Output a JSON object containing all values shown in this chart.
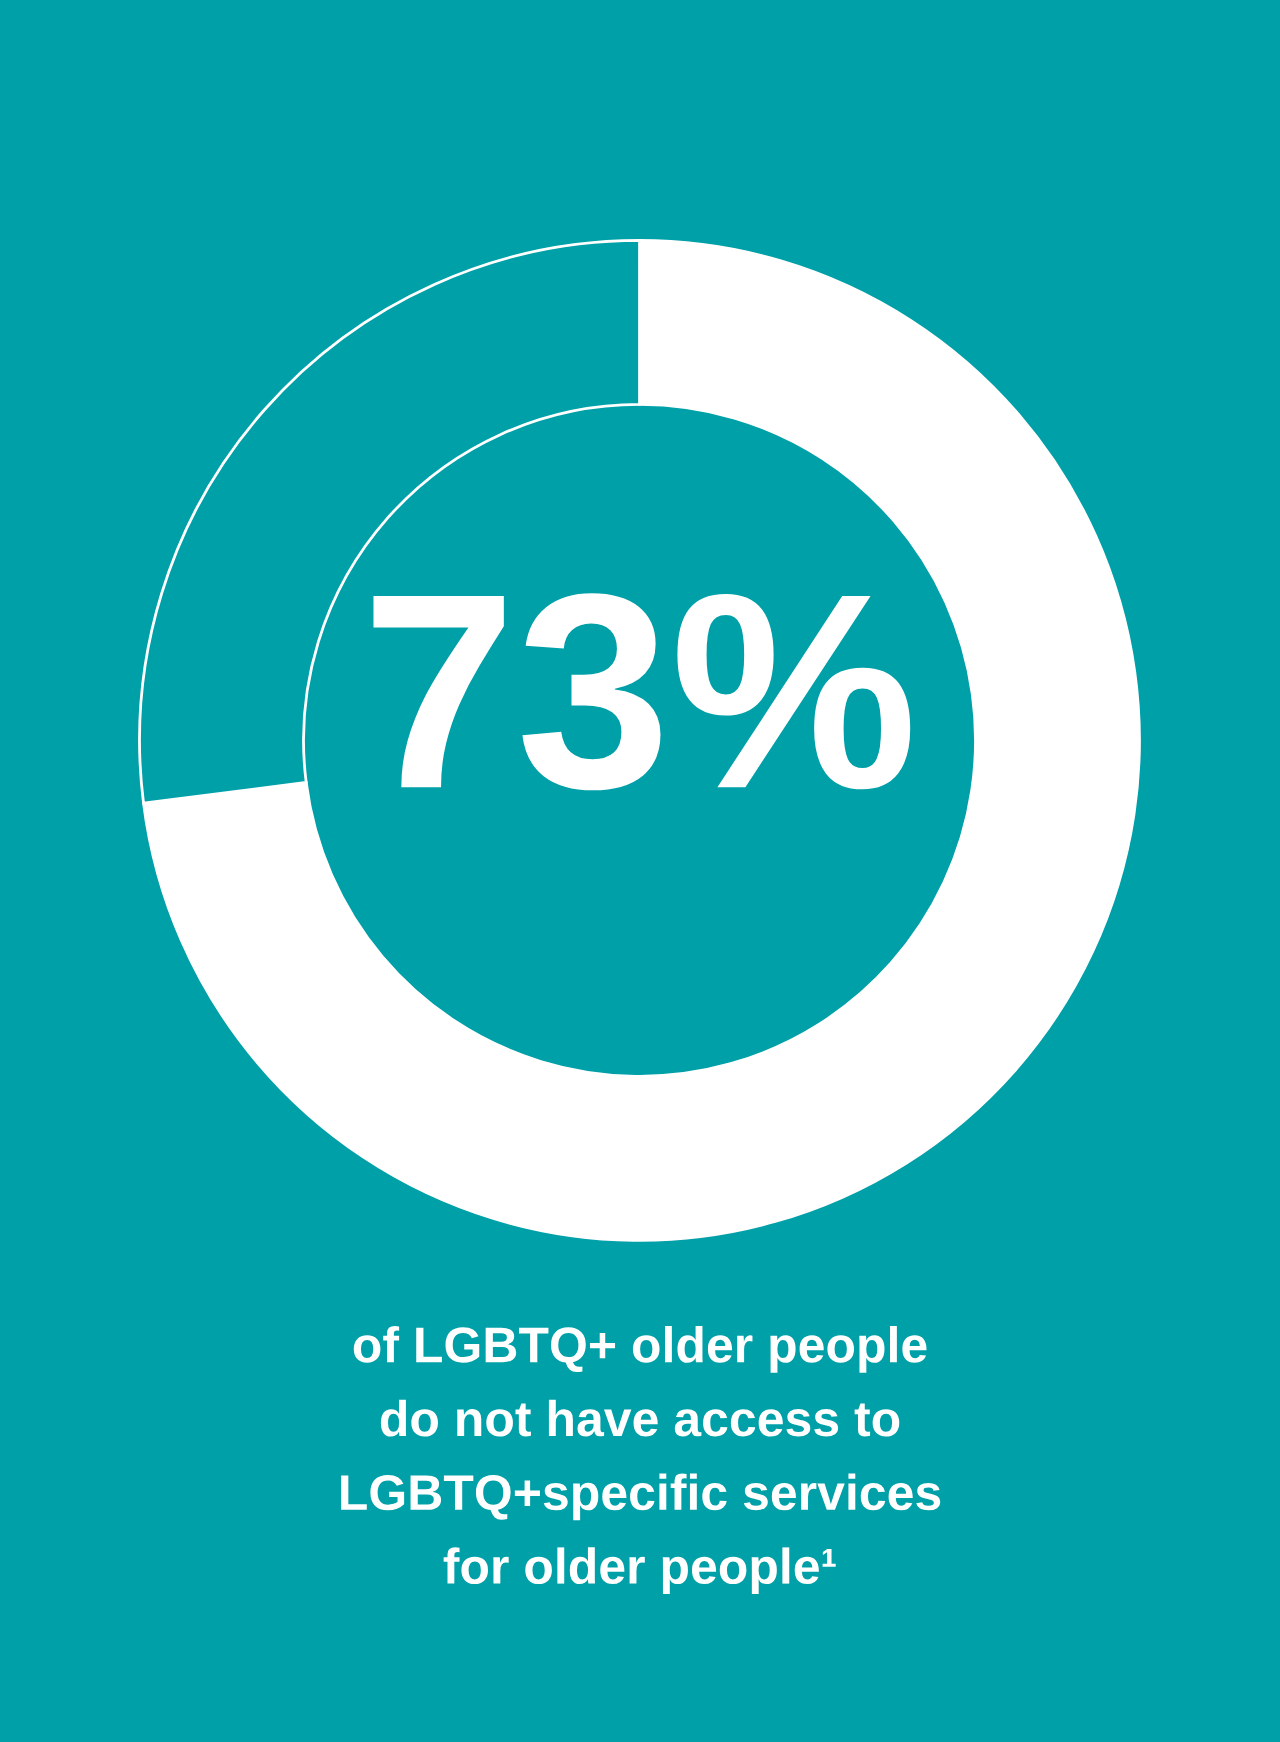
{
  "chart_data": {
    "type": "donut",
    "categories": [
      null,
      null
    ],
    "values": [
      73,
      27
    ],
    "colors": [
      "#ffffff",
      "#00a0a8"
    ],
    "value_labels": [
      "73%",
      null
    ],
    "annotations": [
      "of LGBTQ+ older people\ndo not have access to\nLGBTQ+specific services\nfor older people¹"
    ],
    "legend": false
  }
}
